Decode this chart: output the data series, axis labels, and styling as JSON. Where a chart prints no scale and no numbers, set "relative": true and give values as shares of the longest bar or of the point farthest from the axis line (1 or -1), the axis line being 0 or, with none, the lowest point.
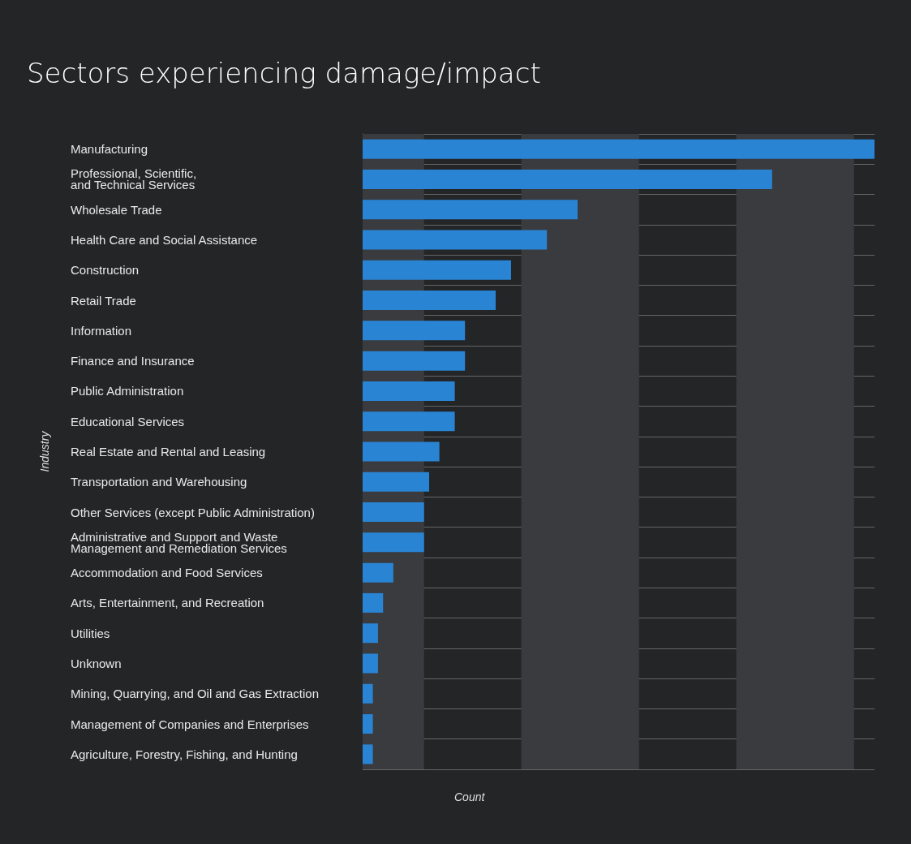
{
  "chart_data": {
    "type": "bar",
    "orientation": "horizontal",
    "relative": true,
    "title": "Sectors experiencing damage/impact",
    "xlabel": "Count",
    "ylabel": "Industry",
    "grid": "y",
    "bands": [
      {
        "axis": "x",
        "from": 0,
        "to": 0.12,
        "color": "#3a3b3f"
      },
      {
        "axis": "x",
        "from": 0.31,
        "to": 0.54,
        "color": "#3a3b3f"
      },
      {
        "axis": "x",
        "from": 0.73,
        "to": 0.96,
        "color": "#3a3b3f"
      }
    ],
    "color": "#2a84d4",
    "categories": [
      "Manufacturing",
      "Professional, Scientific,\nand Technical Services",
      "Wholesale Trade",
      "Health Care and Social Assistance",
      "Construction",
      "Retail Trade",
      "Information",
      "Finance and Insurance",
      "Public Administration",
      "Educational Services",
      "Real Estate and Rental and Leasing",
      "Transportation and Warehousing",
      "Other Services (except Public Administration)",
      "Administrative and Support and Waste\nManagement and Remediation Services",
      "Accommodation and Food Services",
      "Arts, Entertainment, and Recreation",
      "Utilities",
      "Unknown",
      "Mining, Quarrying, and Oil and Gas Extraction",
      "Management of Companies and Enterprises",
      "Agriculture, Forestry, Fishing, and Hunting"
    ],
    "values": [
      1,
      0.8,
      0.42,
      0.36,
      0.29,
      0.26,
      0.2,
      0.2,
      0.18,
      0.18,
      0.15,
      0.13,
      0.12,
      0.12,
      0.06,
      0.04,
      0.03,
      0.03,
      0.02,
      0.02,
      0.02
    ]
  }
}
